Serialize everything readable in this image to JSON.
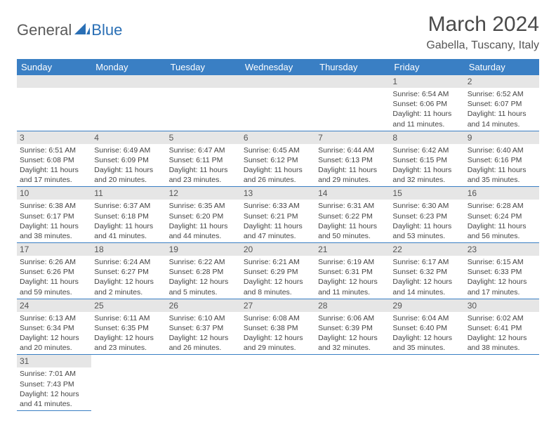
{
  "logo": {
    "text1": "General",
    "text2": "Blue"
  },
  "title": "March 2024",
  "location": "Gabella, Tuscany, Italy",
  "colors": {
    "header_bg": "#3a7fc4",
    "header_text": "#ffffff",
    "daynum_bg": "#e6e6e6",
    "border": "#3a7fc4",
    "logo_gray": "#5a5a5a",
    "logo_blue": "#2a6fb5"
  },
  "day_headers": [
    "Sunday",
    "Monday",
    "Tuesday",
    "Wednesday",
    "Thursday",
    "Friday",
    "Saturday"
  ],
  "weeks": [
    [
      null,
      null,
      null,
      null,
      null,
      {
        "num": "1",
        "sunrise": "Sunrise: 6:54 AM",
        "sunset": "Sunset: 6:06 PM",
        "daylight": "Daylight: 11 hours and 11 minutes."
      },
      {
        "num": "2",
        "sunrise": "Sunrise: 6:52 AM",
        "sunset": "Sunset: 6:07 PM",
        "daylight": "Daylight: 11 hours and 14 minutes."
      }
    ],
    [
      {
        "num": "3",
        "sunrise": "Sunrise: 6:51 AM",
        "sunset": "Sunset: 6:08 PM",
        "daylight": "Daylight: 11 hours and 17 minutes."
      },
      {
        "num": "4",
        "sunrise": "Sunrise: 6:49 AM",
        "sunset": "Sunset: 6:09 PM",
        "daylight": "Daylight: 11 hours and 20 minutes."
      },
      {
        "num": "5",
        "sunrise": "Sunrise: 6:47 AM",
        "sunset": "Sunset: 6:11 PM",
        "daylight": "Daylight: 11 hours and 23 minutes."
      },
      {
        "num": "6",
        "sunrise": "Sunrise: 6:45 AM",
        "sunset": "Sunset: 6:12 PM",
        "daylight": "Daylight: 11 hours and 26 minutes."
      },
      {
        "num": "7",
        "sunrise": "Sunrise: 6:44 AM",
        "sunset": "Sunset: 6:13 PM",
        "daylight": "Daylight: 11 hours and 29 minutes."
      },
      {
        "num": "8",
        "sunrise": "Sunrise: 6:42 AM",
        "sunset": "Sunset: 6:15 PM",
        "daylight": "Daylight: 11 hours and 32 minutes."
      },
      {
        "num": "9",
        "sunrise": "Sunrise: 6:40 AM",
        "sunset": "Sunset: 6:16 PM",
        "daylight": "Daylight: 11 hours and 35 minutes."
      }
    ],
    [
      {
        "num": "10",
        "sunrise": "Sunrise: 6:38 AM",
        "sunset": "Sunset: 6:17 PM",
        "daylight": "Daylight: 11 hours and 38 minutes."
      },
      {
        "num": "11",
        "sunrise": "Sunrise: 6:37 AM",
        "sunset": "Sunset: 6:18 PM",
        "daylight": "Daylight: 11 hours and 41 minutes."
      },
      {
        "num": "12",
        "sunrise": "Sunrise: 6:35 AM",
        "sunset": "Sunset: 6:20 PM",
        "daylight": "Daylight: 11 hours and 44 minutes."
      },
      {
        "num": "13",
        "sunrise": "Sunrise: 6:33 AM",
        "sunset": "Sunset: 6:21 PM",
        "daylight": "Daylight: 11 hours and 47 minutes."
      },
      {
        "num": "14",
        "sunrise": "Sunrise: 6:31 AM",
        "sunset": "Sunset: 6:22 PM",
        "daylight": "Daylight: 11 hours and 50 minutes."
      },
      {
        "num": "15",
        "sunrise": "Sunrise: 6:30 AM",
        "sunset": "Sunset: 6:23 PM",
        "daylight": "Daylight: 11 hours and 53 minutes."
      },
      {
        "num": "16",
        "sunrise": "Sunrise: 6:28 AM",
        "sunset": "Sunset: 6:24 PM",
        "daylight": "Daylight: 11 hours and 56 minutes."
      }
    ],
    [
      {
        "num": "17",
        "sunrise": "Sunrise: 6:26 AM",
        "sunset": "Sunset: 6:26 PM",
        "daylight": "Daylight: 11 hours and 59 minutes."
      },
      {
        "num": "18",
        "sunrise": "Sunrise: 6:24 AM",
        "sunset": "Sunset: 6:27 PM",
        "daylight": "Daylight: 12 hours and 2 minutes."
      },
      {
        "num": "19",
        "sunrise": "Sunrise: 6:22 AM",
        "sunset": "Sunset: 6:28 PM",
        "daylight": "Daylight: 12 hours and 5 minutes."
      },
      {
        "num": "20",
        "sunrise": "Sunrise: 6:21 AM",
        "sunset": "Sunset: 6:29 PM",
        "daylight": "Daylight: 12 hours and 8 minutes."
      },
      {
        "num": "21",
        "sunrise": "Sunrise: 6:19 AM",
        "sunset": "Sunset: 6:31 PM",
        "daylight": "Daylight: 12 hours and 11 minutes."
      },
      {
        "num": "22",
        "sunrise": "Sunrise: 6:17 AM",
        "sunset": "Sunset: 6:32 PM",
        "daylight": "Daylight: 12 hours and 14 minutes."
      },
      {
        "num": "23",
        "sunrise": "Sunrise: 6:15 AM",
        "sunset": "Sunset: 6:33 PM",
        "daylight": "Daylight: 12 hours and 17 minutes."
      }
    ],
    [
      {
        "num": "24",
        "sunrise": "Sunrise: 6:13 AM",
        "sunset": "Sunset: 6:34 PM",
        "daylight": "Daylight: 12 hours and 20 minutes."
      },
      {
        "num": "25",
        "sunrise": "Sunrise: 6:11 AM",
        "sunset": "Sunset: 6:35 PM",
        "daylight": "Daylight: 12 hours and 23 minutes."
      },
      {
        "num": "26",
        "sunrise": "Sunrise: 6:10 AM",
        "sunset": "Sunset: 6:37 PM",
        "daylight": "Daylight: 12 hours and 26 minutes."
      },
      {
        "num": "27",
        "sunrise": "Sunrise: 6:08 AM",
        "sunset": "Sunset: 6:38 PM",
        "daylight": "Daylight: 12 hours and 29 minutes."
      },
      {
        "num": "28",
        "sunrise": "Sunrise: 6:06 AM",
        "sunset": "Sunset: 6:39 PM",
        "daylight": "Daylight: 12 hours and 32 minutes."
      },
      {
        "num": "29",
        "sunrise": "Sunrise: 6:04 AM",
        "sunset": "Sunset: 6:40 PM",
        "daylight": "Daylight: 12 hours and 35 minutes."
      },
      {
        "num": "30",
        "sunrise": "Sunrise: 6:02 AM",
        "sunset": "Sunset: 6:41 PM",
        "daylight": "Daylight: 12 hours and 38 minutes."
      }
    ],
    [
      {
        "num": "31",
        "sunrise": "Sunrise: 7:01 AM",
        "sunset": "Sunset: 7:43 PM",
        "daylight": "Daylight: 12 hours and 41 minutes."
      },
      null,
      null,
      null,
      null,
      null,
      null
    ]
  ]
}
